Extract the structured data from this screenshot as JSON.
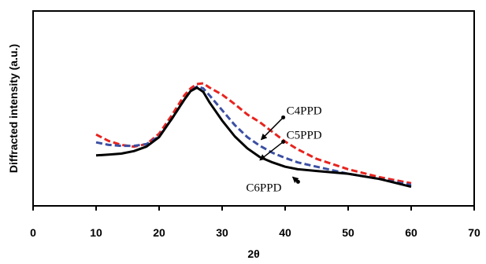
{
  "chart_data": {
    "type": "line",
    "title": "",
    "xlabel": "2θ",
    "ylabel": "Diffracted intensity (a.u.)",
    "xlim": [
      0,
      70
    ],
    "ylim": [
      0,
      100
    ],
    "x_ticks": [
      "0",
      "10",
      "20",
      "30",
      "40",
      "50",
      "60",
      "70"
    ],
    "y_ticks": [],
    "grid": false,
    "legend": "none",
    "series": [
      {
        "name": "C4PPD",
        "color": "#e8231e",
        "dash": "dashed",
        "x": [
          10,
          12,
          14,
          16,
          18,
          20,
          22,
          24,
          25,
          26,
          27,
          28,
          30,
          32,
          34,
          36,
          38,
          40,
          42,
          45,
          50,
          55,
          60
        ],
        "y": [
          36.6,
          33.3,
          31.3,
          30.4,
          31.7,
          37.0,
          46.4,
          56.7,
          60.3,
          62.5,
          62.9,
          60.7,
          57.1,
          52.2,
          46.9,
          42.9,
          37.9,
          33.0,
          29.0,
          24.1,
          18.8,
          14.7,
          11.6
        ]
      },
      {
        "name": "C5PPD",
        "color": "#3b4fa3",
        "dash": "dashed",
        "x": [
          10,
          12,
          14,
          16,
          18,
          20,
          22,
          24,
          25,
          26,
          27,
          28,
          30,
          32,
          34,
          36,
          38,
          40,
          42,
          45,
          50,
          55,
          60
        ],
        "y": [
          32.6,
          31.3,
          30.8,
          30.8,
          31.7,
          35.7,
          44.6,
          54.5,
          58.9,
          61.2,
          60.3,
          56.7,
          49.1,
          41.5,
          35.3,
          30.8,
          27.2,
          24.6,
          22.3,
          20.1,
          16.5,
          13.8,
          10.7
        ]
      },
      {
        "name": "C6PPD",
        "color": "#000000",
        "dash": "solid",
        "x": [
          10,
          12,
          14,
          16,
          18,
          20,
          22,
          24,
          25,
          26,
          27,
          28,
          30,
          32,
          34,
          36,
          38,
          40,
          42,
          45,
          50,
          55,
          60
        ],
        "y": [
          25.9,
          26.3,
          26.8,
          28.1,
          30.4,
          35.3,
          44.6,
          54.5,
          58.9,
          60.7,
          58.5,
          53.1,
          43.8,
          35.7,
          29.5,
          25.0,
          22.3,
          20.1,
          18.8,
          17.9,
          16.5,
          13.8,
          9.8
        ]
      }
    ],
    "annotations": [
      {
        "text": "C4PPD",
        "point_x": 36.2,
        "point_y": 34.0,
        "label_x": 40.2,
        "label_y": 47.0
      },
      {
        "text": "C5PPD",
        "point_x": 36.0,
        "point_y": 23.5,
        "label_x": 40.2,
        "label_y": 34.5
      },
      {
        "text": "C6PPD",
        "point_x": 41.2,
        "point_y": 14.8,
        "label_x": 33.8,
        "label_y": 7.5
      }
    ]
  }
}
